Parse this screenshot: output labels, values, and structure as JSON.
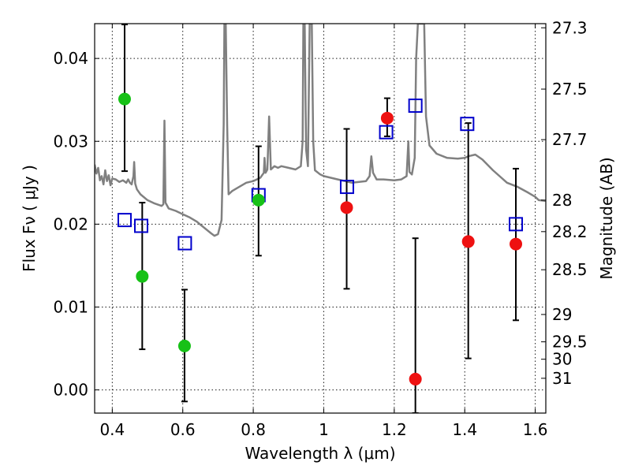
{
  "chart_data": {
    "type": "scatter",
    "title": "",
    "xlabel": "Wavelength  λ (μm)",
    "ylabel": "Flux  Fν  ( μJy )",
    "y2label": "Magnitude (AB)",
    "xlim": [
      0.35,
      1.63
    ],
    "ylim": [
      -0.0028,
      0.0442
    ],
    "grid": true,
    "x_ticks": [
      0.4,
      0.6,
      0.8,
      1.0,
      1.2,
      1.4,
      1.6
    ],
    "x_tick_labels": [
      "0.4",
      "0.6",
      "0.8",
      "1",
      "1.2",
      "1.4",
      "1.6"
    ],
    "y_ticks": [
      0.0,
      0.01,
      0.02,
      0.03,
      0.04
    ],
    "y_tick_labels": [
      "0.00",
      "0.01",
      "0.02",
      "0.03",
      "0.04"
    ],
    "y2_ticks": [
      {
        "label": "27.3",
        "flux": 0.0437
      },
      {
        "label": "27.5",
        "flux": 0.0363
      },
      {
        "label": "27.7",
        "flux": 0.0302
      },
      {
        "label": "28",
        "flux": 0.0229
      },
      {
        "label": "28.2",
        "flux": 0.0191
      },
      {
        "label": "28.5",
        "flux": 0.0145
      },
      {
        "label": "29",
        "flux": 0.0091
      },
      {
        "label": "29.5",
        "flux": 0.0058
      },
      {
        "label": "30",
        "flux": 0.0037
      },
      {
        "label": "31",
        "flux": 0.0014
      }
    ],
    "series": [
      {
        "name": "green measurements",
        "marker": "circle",
        "color": "#17c117",
        "points": [
          {
            "x": 0.435,
            "y": 0.0351,
            "err_lo": 0.0264,
            "err_hi": 0.0441
          },
          {
            "x": 0.485,
            "y": 0.0137,
            "err_lo": 0.0049,
            "err_hi": 0.0226
          },
          {
            "x": 0.605,
            "y": 0.0053,
            "err_lo": -0.0014,
            "err_hi": 0.0121
          },
          {
            "x": 0.815,
            "y": 0.0229,
            "err_lo": 0.0162,
            "err_hi": 0.0294
          }
        ]
      },
      {
        "name": "red measurements",
        "marker": "circle",
        "color": "#ee1111",
        "points": [
          {
            "x": 1.065,
            "y": 0.022,
            "err_lo": 0.0122,
            "err_hi": 0.0315
          },
          {
            "x": 1.18,
            "y": 0.0328,
            "err_lo": 0.0306,
            "err_hi": 0.0352
          },
          {
            "x": 1.26,
            "y": 0.0013,
            "err_lo": -0.0028,
            "err_hi": 0.0183
          },
          {
            "x": 1.41,
            "y": 0.0179,
            "err_lo": 0.0038,
            "err_hi": 0.0322
          },
          {
            "x": 1.545,
            "y": 0.0176,
            "err_lo": 0.0084,
            "err_hi": 0.0267
          }
        ]
      },
      {
        "name": "model photometry",
        "marker": "square",
        "color": "#0000cc",
        "points": [
          {
            "x": 0.435,
            "y": 0.0205
          },
          {
            "x": 0.482,
            "y": 0.0198
          },
          {
            "x": 0.606,
            "y": 0.0177
          },
          {
            "x": 0.815,
            "y": 0.0235
          },
          {
            "x": 1.066,
            "y": 0.0245
          },
          {
            "x": 1.177,
            "y": 0.0311
          },
          {
            "x": 1.26,
            "y": 0.0343
          },
          {
            "x": 1.407,
            "y": 0.0321
          },
          {
            "x": 1.545,
            "y": 0.02
          }
        ]
      },
      {
        "name": "model spectrum",
        "type": "line",
        "color": "#808080",
        "points": [
          [
            0.35,
            0.0272
          ],
          [
            0.355,
            0.0261
          ],
          [
            0.36,
            0.0268
          ],
          [
            0.365,
            0.0253
          ],
          [
            0.37,
            0.0258
          ],
          [
            0.375,
            0.0248
          ],
          [
            0.38,
            0.0265
          ],
          [
            0.385,
            0.0252
          ],
          [
            0.39,
            0.0259
          ],
          [
            0.395,
            0.0247
          ],
          [
            0.4,
            0.0255
          ],
          [
            0.41,
            0.0254
          ],
          [
            0.42,
            0.0251
          ],
          [
            0.43,
            0.0253
          ],
          [
            0.44,
            0.025
          ],
          [
            0.445,
            0.0254
          ],
          [
            0.45,
            0.025
          ],
          [
            0.455,
            0.0248
          ],
          [
            0.46,
            0.0258
          ],
          [
            0.462,
            0.0275
          ],
          [
            0.465,
            0.0249
          ],
          [
            0.47,
            0.0242
          ],
          [
            0.48,
            0.0236
          ],
          [
            0.5,
            0.0229
          ],
          [
            0.52,
            0.0225
          ],
          [
            0.54,
            0.0222
          ],
          [
            0.545,
            0.0224
          ],
          [
            0.548,
            0.0325
          ],
          [
            0.551,
            0.0226
          ],
          [
            0.56,
            0.0219
          ],
          [
            0.58,
            0.0216
          ],
          [
            0.6,
            0.0212
          ],
          [
            0.62,
            0.0208
          ],
          [
            0.64,
            0.0203
          ],
          [
            0.66,
            0.0196
          ],
          [
            0.68,
            0.0189
          ],
          [
            0.69,
            0.0186
          ],
          [
            0.7,
            0.0188
          ],
          [
            0.71,
            0.0205
          ],
          [
            0.716,
            0.032
          ],
          [
            0.718,
            0.0442
          ],
          [
            0.722,
            0.0442
          ],
          [
            0.726,
            0.032
          ],
          [
            0.73,
            0.0236
          ],
          [
            0.74,
            0.024
          ],
          [
            0.76,
            0.0245
          ],
          [
            0.78,
            0.025
          ],
          [
            0.8,
            0.0252
          ],
          [
            0.82,
            0.0256
          ],
          [
            0.83,
            0.0262
          ],
          [
            0.832,
            0.028
          ],
          [
            0.835,
            0.0262
          ],
          [
            0.84,
            0.0266
          ],
          [
            0.845,
            0.033
          ],
          [
            0.85,
            0.0266
          ],
          [
            0.86,
            0.027
          ],
          [
            0.87,
            0.0268
          ],
          [
            0.88,
            0.027
          ],
          [
            0.9,
            0.0268
          ],
          [
            0.92,
            0.0266
          ],
          [
            0.935,
            0.027
          ],
          [
            0.94,
            0.03
          ],
          [
            0.942,
            0.0442
          ],
          [
            0.946,
            0.0442
          ],
          [
            0.95,
            0.029
          ],
          [
            0.955,
            0.027
          ],
          [
            0.96,
            0.0442
          ],
          [
            0.966,
            0.0442
          ],
          [
            0.97,
            0.03
          ],
          [
            0.975,
            0.0265
          ],
          [
            0.99,
            0.026
          ],
          [
            1.0,
            0.0258
          ],
          [
            1.02,
            0.0256
          ],
          [
            1.04,
            0.0254
          ],
          [
            1.06,
            0.0252
          ],
          [
            1.08,
            0.025
          ],
          [
            1.1,
            0.0251
          ],
          [
            1.12,
            0.0252
          ],
          [
            1.13,
            0.0258
          ],
          [
            1.135,
            0.0282
          ],
          [
            1.14,
            0.0262
          ],
          [
            1.15,
            0.0254
          ],
          [
            1.17,
            0.0254
          ],
          [
            1.2,
            0.0253
          ],
          [
            1.22,
            0.0254
          ],
          [
            1.235,
            0.0258
          ],
          [
            1.24,
            0.03
          ],
          [
            1.243,
            0.0263
          ],
          [
            1.25,
            0.026
          ],
          [
            1.258,
            0.028
          ],
          [
            1.262,
            0.04
          ],
          [
            1.267,
            0.0442
          ],
          [
            1.285,
            0.0442
          ],
          [
            1.29,
            0.033
          ],
          [
            1.3,
            0.0295
          ],
          [
            1.32,
            0.0285
          ],
          [
            1.35,
            0.028
          ],
          [
            1.38,
            0.0279
          ],
          [
            1.4,
            0.028
          ],
          [
            1.41,
            0.0282
          ],
          [
            1.43,
            0.0284
          ],
          [
            1.45,
            0.0278
          ],
          [
            1.48,
            0.0265
          ],
          [
            1.52,
            0.025
          ],
          [
            1.55,
            0.0245
          ],
          [
            1.58,
            0.0238
          ],
          [
            1.6,
            0.0233
          ],
          [
            1.61,
            0.0229
          ],
          [
            1.63,
            0.0228
          ]
        ]
      }
    ]
  }
}
